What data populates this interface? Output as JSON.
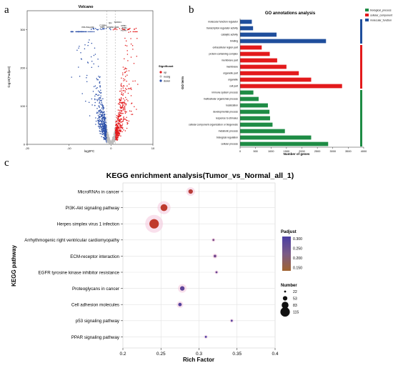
{
  "chart_data": [
    {
      "panel": "a",
      "type": "scatter",
      "title": "Volcano",
      "xlabel": "log2FC",
      "ylabel": "-log10(Padjust)",
      "xlim": [
        -20,
        10
      ],
      "ylim": [
        0,
        350
      ],
      "x_ticks": [
        -20,
        -10,
        0,
        10
      ],
      "y_ticks": [
        0,
        100,
        200,
        300
      ],
      "legend_title": "Significant",
      "legend": [
        {
          "name": "up",
          "color": "#e31a1c"
        },
        {
          "name": "nosig",
          "color": "#bdbdbd"
        },
        {
          "name": "down",
          "color": "#2b4fa8"
        }
      ],
      "gene_labels": [
        {
          "text": "CYBBA",
          "x": -1.9,
          "y": 310
        },
        {
          "text": "PRL/Msp24b",
          "x": -5.5,
          "y": 305
        },
        {
          "text": "MP1",
          "x": -2.0,
          "y": 305
        },
        {
          "text": "STAB3",
          "x": -0.3,
          "y": 305
        },
        {
          "text": "CD03",
          "x": 1.2,
          "y": 305
        },
        {
          "text": "QH",
          "x": -0.2,
          "y": 316
        },
        {
          "text": "TMOD1",
          "x": 1.6,
          "y": 318
        },
        {
          "text": "CPB1",
          "x": 3.0,
          "y": 309
        },
        {
          "text": "AFB1",
          "x": 3.2,
          "y": 303
        },
        {
          "text": "ACAN",
          "x": 3.0,
          "y": 297
        }
      ]
    },
    {
      "panel": "b",
      "type": "bar",
      "title": "GO annotations analysis",
      "xlabel": "Number of genes",
      "ylabel": "GO term",
      "xlim": [
        0,
        4000
      ],
      "x_ticks": [
        0,
        500,
        1000,
        1500,
        2000,
        2500,
        3000,
        3500,
        4000
      ],
      "legend": [
        {
          "name": "biological_process",
          "color": "#1e8c45"
        },
        {
          "name": "cellular_component",
          "color": "#e31a1c"
        },
        {
          "name": "molecular_function",
          "color": "#1f4e9c"
        }
      ],
      "categories": [
        {
          "label": "molecular function regulator",
          "value": 380,
          "group": 2
        },
        {
          "label": "transcription regulator activity",
          "value": 420,
          "group": 2
        },
        {
          "label": "catalytic activity",
          "value": 1180,
          "group": 2
        },
        {
          "label": "binding",
          "value": 2780,
          "group": 2
        },
        {
          "label": "extracellular region part",
          "value": 700,
          "group": 1
        },
        {
          "label": "protein-containing complex",
          "value": 960,
          "group": 1
        },
        {
          "label": "membrane part",
          "value": 1200,
          "group": 1
        },
        {
          "label": "membrane",
          "value": 1500,
          "group": 1
        },
        {
          "label": "organelle part",
          "value": 1900,
          "group": 1
        },
        {
          "label": "organelle",
          "value": 2300,
          "group": 1
        },
        {
          "label": "cell part",
          "value": 3300,
          "group": 1
        },
        {
          "label": "immune system process",
          "value": 430,
          "group": 0
        },
        {
          "label": "multicellular organismal process",
          "value": 600,
          "group": 0
        },
        {
          "label": "localization",
          "value": 900,
          "group": 0
        },
        {
          "label": "developmental process",
          "value": 950,
          "group": 0
        },
        {
          "label": "response to stimulus",
          "value": 970,
          "group": 0
        },
        {
          "label": "cellular component organization or biogenesis",
          "value": 1050,
          "group": 0
        },
        {
          "label": "metabolic process",
          "value": 1450,
          "group": 0
        },
        {
          "label": "biological regulation",
          "value": 2300,
          "group": 0
        },
        {
          "label": "cellular process",
          "value": 2850,
          "group": 0
        }
      ]
    },
    {
      "panel": "c",
      "type": "scatter",
      "title": "KEGG enrichment analysis(Tumor_vs_Normal_all_1)",
      "xlabel": "Rich Factor",
      "ylabel": "KEGG pathway",
      "xlim": [
        0.2,
        0.4
      ],
      "x_ticks": [
        "0.2",
        "0.25",
        "0.3",
        "0.35",
        "0.4"
      ],
      "padjust_title": "Padjust",
      "padjust_ticks": [
        "0.300",
        "0.250",
        "0.200",
        "0.150"
      ],
      "number_title": "Number",
      "number_ticks": [
        "22",
        "53",
        "83",
        "115"
      ],
      "points": [
        {
          "pathway": "MicroRNAs in cancer",
          "rich": 0.289,
          "number": 53,
          "padjust": 0.16
        },
        {
          "pathway": "PI3K-Akt signaling pathway",
          "rich": 0.254,
          "number": 83,
          "padjust": 0.145
        },
        {
          "pathway": "Herpes simplex virus 1 infection",
          "rich": 0.241,
          "number": 115,
          "padjust": 0.14
        },
        {
          "pathway": "Arrhythmogenic right ventricular cardiomyopathy",
          "rich": 0.319,
          "number": 22,
          "padjust": 0.28
        },
        {
          "pathway": "ECM-receptor interaction",
          "rich": 0.321,
          "number": 30,
          "padjust": 0.29
        },
        {
          "pathway": "EGFR tyrosine kinase inhibitor resistance",
          "rich": 0.323,
          "number": 22,
          "padjust": 0.3
        },
        {
          "pathway": "Proteoglycans in cancer",
          "rich": 0.278,
          "number": 53,
          "padjust": 0.31
        },
        {
          "pathway": "Cell adhesion molecules",
          "rich": 0.275,
          "number": 40,
          "padjust": 0.32
        },
        {
          "pathway": "p53 signaling pathway",
          "rich": 0.343,
          "number": 22,
          "padjust": 0.32
        },
        {
          "pathway": "PPAR signaling pathway",
          "rich": 0.309,
          "number": 22,
          "padjust": 0.33
        }
      ]
    }
  ],
  "panel_letters": {
    "a": "a",
    "b": "b",
    "c": "c"
  }
}
